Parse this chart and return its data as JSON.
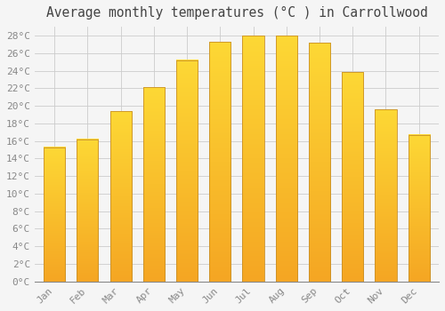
{
  "title": "Average monthly temperatures (°C ) in Carrollwood",
  "months": [
    "Jan",
    "Feb",
    "Mar",
    "Apr",
    "May",
    "Jun",
    "Jul",
    "Aug",
    "Sep",
    "Oct",
    "Nov",
    "Dec"
  ],
  "values": [
    15.3,
    16.2,
    19.4,
    22.1,
    25.2,
    27.3,
    28.0,
    28.0,
    27.2,
    23.8,
    19.6,
    16.7
  ],
  "bar_color_top": "#FDD835",
  "bar_color_bottom": "#F5A623",
  "bar_edge_color": "#C8902A",
  "background_color": "#F5F5F5",
  "plot_bg_color": "#F5F5F5",
  "grid_color": "#CCCCCC",
  "tick_label_color": "#888888",
  "title_color": "#444444",
  "ylim": [
    0,
    29
  ],
  "yticks": [
    0,
    2,
    4,
    6,
    8,
    10,
    12,
    14,
    16,
    18,
    20,
    22,
    24,
    26,
    28
  ],
  "title_fontsize": 10.5,
  "tick_fontsize": 8
}
